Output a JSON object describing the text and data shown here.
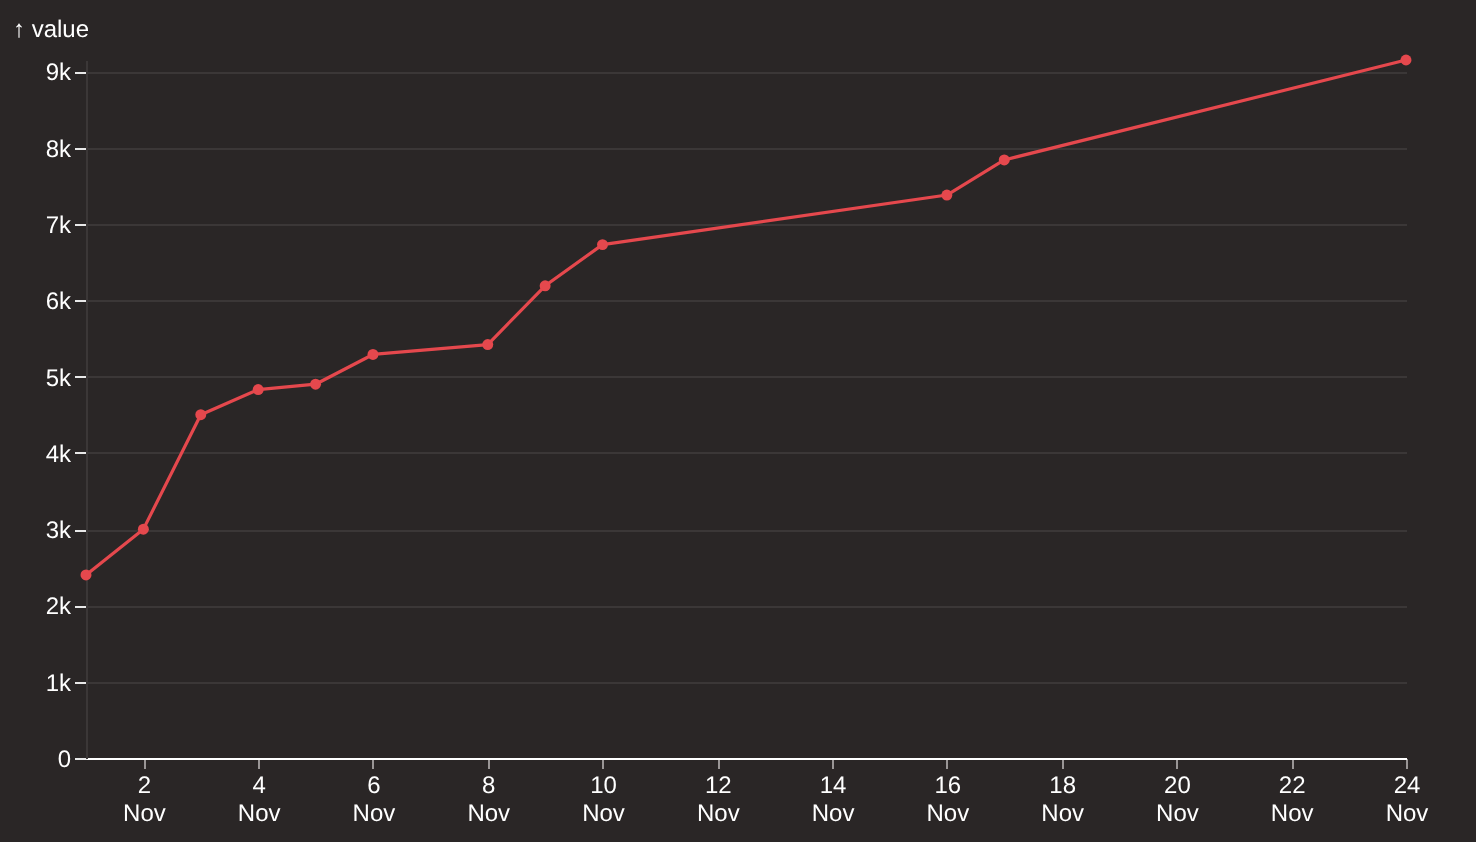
{
  "chart_data": {
    "type": "line",
    "ylabel": "↑ value",
    "x": [
      "--11-01",
      "--11-02",
      "--11-03",
      "--11-04",
      "--11-05",
      "--11-06",
      "--11-08",
      "--11-09",
      "--11-10",
      "--11-16",
      "--11-17",
      "--11-24"
    ],
    "series": [
      {
        "color": "#e5484d",
        "values": [
          2400,
          3000,
          4500,
          4830,
          4900,
          5290,
          5420,
          6190,
          6730,
          7380,
          7840,
          9150
        ]
      }
    ],
    "xlim": [
      "--11-01",
      "--11-24"
    ],
    "xticks": [
      {
        "value": "--11-02",
        "label": "2 Nov"
      },
      {
        "value": "--11-04",
        "label": "4 Nov"
      },
      {
        "value": "--11-06",
        "label": "6 Nov"
      },
      {
        "value": "--11-08",
        "label": "8 Nov"
      },
      {
        "value": "--11-10",
        "label": "10 Nov"
      },
      {
        "value": "--11-12",
        "label": "12 Nov"
      },
      {
        "value": "--11-14",
        "label": "14 Nov"
      },
      {
        "value": "--11-16",
        "label": "16 Nov"
      },
      {
        "value": "--11-18",
        "label": "18 Nov"
      },
      {
        "value": "--11-20",
        "label": "20 Nov"
      },
      {
        "value": "--11-22",
        "label": "22 Nov"
      },
      {
        "value": "--11-24",
        "label": "24 Nov"
      }
    ],
    "ylim": [
      0,
      9150
    ],
    "yticks": [
      0,
      {
        "value": 1000,
        "label": "1k"
      },
      {
        "value": 2000,
        "label": "2k"
      },
      {
        "value": 3000,
        "label": "3k"
      },
      {
        "value": 4000,
        "label": "4k"
      },
      {
        "value": 5000,
        "label": "5k"
      },
      {
        "value": 6000,
        "label": "6k"
      },
      {
        "value": 7000,
        "label": "7k"
      },
      {
        "value": 8000,
        "label": "8k"
      },
      {
        "value": 9000,
        "label": "9k"
      }
    ],
    "grid": "y",
    "marker": "circle",
    "line_style": "solid"
  }
}
